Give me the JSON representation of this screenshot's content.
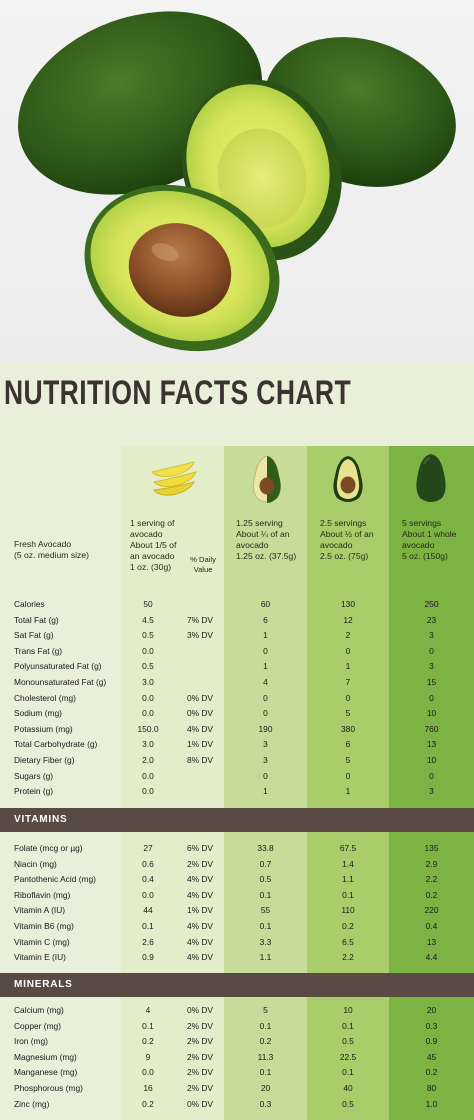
{
  "title": "NUTRITION FACTS CHART",
  "header": {
    "label_line1": "Fresh Avocado",
    "label_line2": "(5 oz. medium size)",
    "col1": [
      "1 serving of",
      "avocado",
      "About 1/5 of",
      "an avocado",
      "1 oz. (30g)"
    ],
    "col1b": [
      "% Daily",
      "Value"
    ],
    "col2": [
      "1.25 serving",
      "About ¼ of an",
      "avocado",
      "1.25 oz. (37.5g)"
    ],
    "col3": [
      "2.5 servings",
      "About ½ of an",
      "avocado",
      "2.5 oz. (75g)"
    ],
    "col4": [
      "5 servings",
      "About 1 whole",
      "avocado",
      "5 oz. (150g)"
    ]
  },
  "nutrients": [
    [
      "Calories",
      "50",
      "",
      "60",
      "130",
      "250"
    ],
    [
      "Total Fat (g)",
      "4.5",
      "7% DV",
      "6",
      "12",
      "23"
    ],
    [
      "Sat Fat (g)",
      "0.5",
      "3% DV",
      "1",
      "2",
      "3"
    ],
    [
      "Trans Fat (g)",
      "0.0",
      "",
      "0",
      "0",
      "0"
    ],
    [
      "Polyunsaturated Fat (g)",
      "0.5",
      "",
      "1",
      "1",
      "3"
    ],
    [
      "Monounsaturated Fat (g)",
      "3.0",
      "",
      "4",
      "7",
      "15"
    ],
    [
      "Cholesterol (mg)",
      "0.0",
      "0% DV",
      "0",
      "0",
      "0"
    ],
    [
      "Sodium (mg)",
      "0.0",
      "0% DV",
      "0",
      "5",
      "10"
    ],
    [
      "Potassium (mg)",
      "150.0",
      "4% DV",
      "190",
      "380",
      "760"
    ],
    [
      "Total Carbohydrate (g)",
      "3.0",
      "1% DV",
      "3",
      "6",
      "13"
    ],
    [
      "Dietary Fiber (g)",
      "2.0",
      "8% DV",
      "3",
      "5",
      "10"
    ],
    [
      "Sugars (g)",
      "0.0",
      "",
      "0",
      "0",
      "0"
    ],
    [
      "Protein (g)",
      "0.0",
      "",
      "1",
      "1",
      "3"
    ]
  ],
  "vitamins_label": "VITAMINS",
  "vitamins": [
    [
      "Folate (mcg or µg)",
      "27",
      "6% DV",
      "33.8",
      "67.5",
      "135"
    ],
    [
      "Niacin (mg)",
      "0.6",
      "2% DV",
      "0.7",
      "1.4",
      "2.9"
    ],
    [
      "Pantothenic Acid (mg)",
      "0.4",
      "4% DV",
      "0.5",
      "1.1",
      "2.2"
    ],
    [
      "Riboflavin (mg)",
      "0.0",
      "4% DV",
      "0.1",
      "0.1",
      "0.2"
    ],
    [
      "Vitamin A (IU)",
      "44",
      "1% DV",
      "55",
      "110",
      "220"
    ],
    [
      "Vitamin B6 (mg)",
      "0.1",
      "4% DV",
      "0.1",
      "0.2",
      "0.4"
    ],
    [
      "Vitamin C (mg)",
      "2.6",
      "4% DV",
      "3.3",
      "6.5",
      "13"
    ],
    [
      "Vitamin E (IU)",
      "0.9",
      "4% DV",
      "1.1",
      "2.2",
      "4.4"
    ]
  ],
  "minerals_label": "MINERALS",
  "minerals": [
    [
      "Calcium (mg)",
      "4",
      "0% DV",
      "5",
      "10",
      "20"
    ],
    [
      "Copper (mg)",
      "0.1",
      "2% DV",
      "0.1",
      "0.1",
      "0.3"
    ],
    [
      "Iron (mg)",
      "0.2",
      "2% DV",
      "0.2",
      "0.5",
      "0.9"
    ],
    [
      "Magnesium (mg)",
      "9",
      "2% DV",
      "11.3",
      "22.5",
      "45"
    ],
    [
      "Manganese (mg)",
      "0.0",
      "2% DV",
      "0.1",
      "0.1",
      "0.2"
    ],
    [
      "Phosphorous (mg)",
      "16",
      "2% DV",
      "20",
      "40",
      "80"
    ],
    [
      "Zinc (mg)",
      "0.2",
      "0% DV",
      "0.3",
      "0.5",
      "1.0"
    ]
  ]
}
